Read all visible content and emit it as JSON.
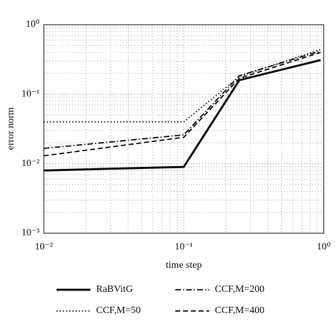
{
  "chart_data": {
    "type": "line",
    "x_label": "time step",
    "y_label": "error norm",
    "x_scale": "log",
    "y_scale": "log",
    "grid": true,
    "xlim": [
      0.01,
      1
    ],
    "ylim": [
      0.001,
      1
    ],
    "xticks": [
      {
        "value": 0.01,
        "label": "10⁻²"
      },
      {
        "value": 0.1,
        "label": "10⁻¹"
      },
      {
        "value": 1,
        "label": "10⁰"
      }
    ],
    "yticks": [
      {
        "value": 0.001,
        "label": "10⁻³"
      },
      {
        "value": 0.01,
        "label": "10⁻²"
      },
      {
        "value": 0.1,
        "label": "10⁻¹"
      },
      {
        "value": 1,
        "label": "10⁰"
      }
    ],
    "x": [
      0.01,
      0.1,
      0.25,
      0.95
    ],
    "series": [
      {
        "name": "RaBVitG",
        "color": "#111111",
        "style": "solid",
        "values": [
          0.008,
          0.009,
          0.16,
          0.31
        ]
      },
      {
        "name": "CCF,M=50",
        "color": "#111111",
        "style": "dotted",
        "values": [
          0.04,
          0.04,
          0.18,
          0.44
        ]
      },
      {
        "name": "CCF,M=200",
        "color": "#111111",
        "style": "dashdot",
        "values": [
          0.0166,
          0.026,
          0.185,
          0.42
        ]
      },
      {
        "name": "CCF,M=400",
        "color": "#111111",
        "style": "dashed",
        "values": [
          0.013,
          0.024,
          0.17,
          0.4
        ]
      }
    ]
  }
}
